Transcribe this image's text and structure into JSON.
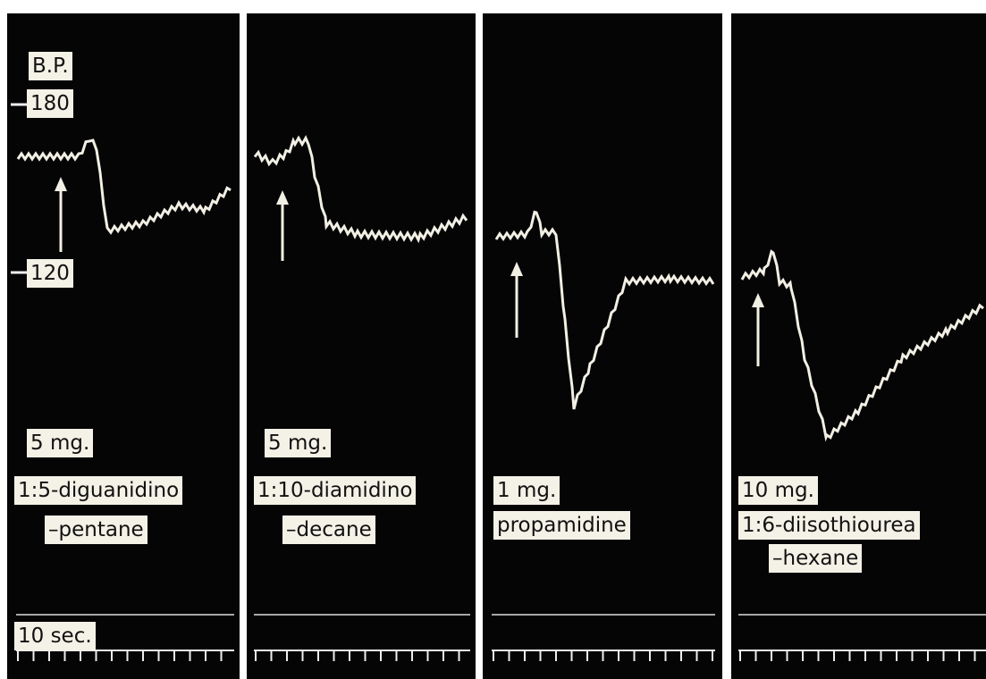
{
  "bp_label": "B.P.",
  "scale": [
    "180",
    "120"
  ],
  "time_label": "10 sec.",
  "panels": [
    {
      "dose": "5 mg.",
      "drug": [
        "1:5-diguanidino",
        "–pentane"
      ]
    },
    {
      "dose": "5 mg.",
      "drug": [
        "1:10-diamidino",
        "–decane"
      ]
    },
    {
      "dose": "1 mg.",
      "drug": [
        "propamidine"
      ]
    },
    {
      "dose": "10 mg.",
      "drug": [
        "1:6-diisothiourea",
        "–hexane"
      ]
    }
  ]
}
